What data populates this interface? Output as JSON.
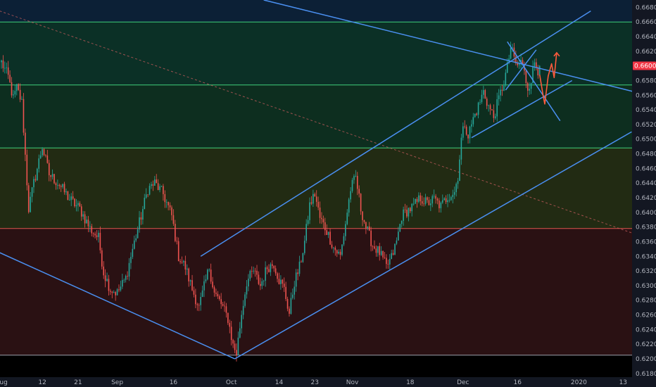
{
  "chart_data": {
    "type": "candlestick",
    "y_axis": {
      "position": "right",
      "range": [
        0.6175,
        0.669
      ],
      "ticks": [
        "0.66800",
        "0.66600",
        "0.66400",
        "0.66200",
        "0.66000",
        "0.65800",
        "0.65600",
        "0.65400",
        "0.65200",
        "0.65000",
        "0.64800",
        "0.64600",
        "0.64400",
        "0.64200",
        "0.64000",
        "0.63800",
        "0.63600",
        "0.63400",
        "0.63200",
        "0.63000",
        "0.62800",
        "0.62600",
        "0.62400",
        "0.62200",
        "0.62000",
        "0.61800"
      ]
    },
    "x_axis": {
      "ticks": [
        {
          "label": "Aug",
          "bar": 0
        },
        {
          "label": "12",
          "bar": 24
        },
        {
          "label": "21",
          "bar": 45
        },
        {
          "label": "Sep",
          "bar": 68
        },
        {
          "label": "16",
          "bar": 101
        },
        {
          "label": "Oct",
          "bar": 135
        },
        {
          "label": "14",
          "bar": 163
        },
        {
          "label": "23",
          "bar": 184
        },
        {
          "label": "Nov",
          "bar": 206
        },
        {
          "label": "18",
          "bar": 240
        },
        {
          "label": "Dec",
          "bar": 271
        },
        {
          "label": "16",
          "bar": 303
        },
        {
          "label": "2020",
          "bar": 339
        },
        {
          "label": "13",
          "bar": 365
        }
      ]
    },
    "current_price": "0.66002",
    "current_price_value": 0.66002,
    "bands": [
      {
        "from": 0.666,
        "to": 0.669,
        "color": "#0c2036"
      },
      {
        "from": 0.6574,
        "to": 0.666,
        "color": "#0b3026"
      },
      {
        "from": 0.6488,
        "to": 0.6574,
        "color": "#0d2e1f"
      },
      {
        "from": 0.6378,
        "to": 0.6488,
        "color": "#222b13"
      },
      {
        "from": 0.6205,
        "to": 0.6378,
        "color": "#2a1113"
      },
      {
        "from": 0.6175,
        "to": 0.6205,
        "color": "#000000"
      }
    ],
    "levels": [
      {
        "value": 0.666,
        "color": "#3fd07a"
      },
      {
        "value": 0.6574,
        "color": "#3fd07a"
      },
      {
        "value": 0.6488,
        "color": "#3fd07a"
      },
      {
        "value": 0.6378,
        "color": "#e0554f"
      },
      {
        "value": 0.6205,
        "color": "#9aa0aa"
      }
    ],
    "trendlines": [
      {
        "from": [
          -1,
          0.6345
        ],
        "to": [
          137,
          0.62
        ],
        "color": "#4a8ff0"
      },
      {
        "from": [
          137,
          0.62
        ],
        "to": [
          370,
          0.651
        ],
        "color": "#4a8ff0"
      },
      {
        "from": [
          117,
          0.634
        ],
        "to": [
          346,
          0.6675
        ],
        "color": "#4a8ff0"
      },
      {
        "from": [
          154,
          0.669
        ],
        "to": [
          397,
          0.655
        ],
        "color": "#4a8ff0"
      },
      {
        "from": [
          276,
          0.6502
        ],
        "to": [
          335,
          0.658
        ],
        "color": "#4a8ff0"
      },
      {
        "from": [
          297,
          0.6633
        ],
        "to": [
          328,
          0.6525
        ],
        "color": "#4a8ff0"
      },
      {
        "from": [
          296,
          0.6567
        ],
        "to": [
          314,
          0.6622
        ],
        "color": "#4a8ff0"
      }
    ],
    "dashed_lines": [
      {
        "from": [
          -1,
          0.6675
        ],
        "to": [
          397,
          0.635
        ],
        "color": "#c25b5b"
      }
    ],
    "projection_path": {
      "color": "#ff5a3c",
      "points": [
        [
          316,
          0.6588
        ],
        [
          318,
          0.656
        ],
        [
          319,
          0.6548
        ],
        [
          321,
          0.6586
        ],
        [
          323,
          0.6603
        ],
        [
          324.5,
          0.6584
        ],
        [
          326,
          0.6618
        ]
      ]
    },
    "candles": {
      "open": 0.6605,
      "anchors": [
        [
          0,
          0.6605
        ],
        [
          4,
          0.6585
        ],
        [
          7,
          0.6555
        ],
        [
          9,
          0.657
        ],
        [
          12,
          0.655
        ],
        [
          16,
          0.6405
        ],
        [
          19,
          0.644
        ],
        [
          24,
          0.649
        ],
        [
          28,
          0.6452
        ],
        [
          34,
          0.6438
        ],
        [
          40,
          0.6418
        ],
        [
          46,
          0.6405
        ],
        [
          52,
          0.6378
        ],
        [
          57,
          0.6365
        ],
        [
          60,
          0.6318
        ],
        [
          64,
          0.6295
        ],
        [
          68,
          0.629
        ],
        [
          73,
          0.631
        ],
        [
          77,
          0.635
        ],
        [
          82,
          0.6395
        ],
        [
          86,
          0.6432
        ],
        [
          90,
          0.644
        ],
        [
          95,
          0.6425
        ],
        [
          100,
          0.6395
        ],
        [
          104,
          0.634
        ],
        [
          108,
          0.6325
        ],
        [
          112,
          0.6295
        ],
        [
          116,
          0.627
        ],
        [
          119,
          0.6298
        ],
        [
          122,
          0.6325
        ],
        [
          125,
          0.629
        ],
        [
          129,
          0.6275
        ],
        [
          133,
          0.6255
        ],
        [
          136,
          0.6218
        ],
        [
          138,
          0.6208
        ],
        [
          141,
          0.6262
        ],
        [
          144,
          0.6305
        ],
        [
          148,
          0.632
        ],
        [
          152,
          0.63
        ],
        [
          156,
          0.6325
        ],
        [
          160,
          0.633
        ],
        [
          163,
          0.6308
        ],
        [
          166,
          0.6295
        ],
        [
          169,
          0.6262
        ],
        [
          172,
          0.6305
        ],
        [
          175,
          0.6325
        ],
        [
          178,
          0.636
        ],
        [
          181,
          0.641
        ],
        [
          184,
          0.6425
        ],
        [
          187,
          0.6392
        ],
        [
          191,
          0.6375
        ],
        [
          195,
          0.6352
        ],
        [
          199,
          0.634
        ],
        [
          202,
          0.6385
        ],
        [
          205,
          0.6432
        ],
        [
          208,
          0.6448
        ],
        [
          211,
          0.6405
        ],
        [
          214,
          0.638
        ],
        [
          218,
          0.6355
        ],
        [
          222,
          0.6345
        ],
        [
          226,
          0.6325
        ],
        [
          229,
          0.6338
        ],
        [
          232,
          0.636
        ],
        [
          235,
          0.6395
        ],
        [
          238,
          0.6402
        ],
        [
          242,
          0.6408
        ],
        [
          246,
          0.642
        ],
        [
          250,
          0.6412
        ],
        [
          254,
          0.6418
        ],
        [
          258,
          0.6408
        ],
        [
          262,
          0.6422
        ],
        [
          266,
          0.6428
        ],
        [
          268,
          0.645
        ],
        [
          270,
          0.65
        ],
        [
          272,
          0.6522
        ],
        [
          274,
          0.6505
        ],
        [
          277,
          0.6528
        ],
        [
          280,
          0.6545
        ],
        [
          283,
          0.6565
        ],
        [
          286,
          0.6545
        ],
        [
          289,
          0.653
        ],
        [
          292,
          0.6555
        ],
        [
          295,
          0.6578
        ],
        [
          297,
          0.6598
        ],
        [
          299,
          0.6625
        ],
        [
          301,
          0.661
        ],
        [
          303,
          0.6598
        ],
        [
          305,
          0.6608
        ],
        [
          307,
          0.659
        ],
        [
          309,
          0.657
        ],
        [
          311,
          0.6582
        ],
        [
          313,
          0.6605
        ],
        [
          315,
          0.6595
        ],
        [
          316,
          0.66
        ]
      ]
    }
  }
}
